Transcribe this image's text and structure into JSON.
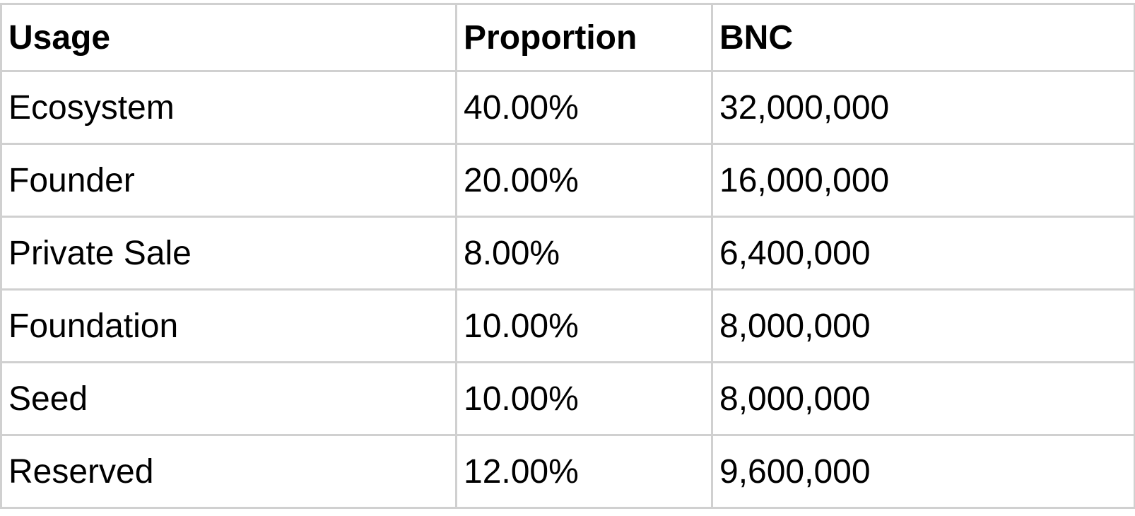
{
  "table": {
    "headers": [
      "Usage",
      "Proportion",
      "BNC"
    ],
    "rows": [
      [
        "Ecosystem",
        "40.00%",
        "32,000,000"
      ],
      [
        "Founder",
        "20.00%",
        "16,000,000"
      ],
      [
        "Private Sale",
        "8.00%",
        "6,400,000"
      ],
      [
        "Foundation",
        "10.00%",
        "8,000,000"
      ],
      [
        "Seed",
        "10.00%",
        "8,000,000"
      ],
      [
        "Reserved",
        "12.00%",
        "9,600,000"
      ]
    ]
  },
  "colors": {
    "border": "#d0d0d0",
    "text": "#000000",
    "background": "#ffffff"
  }
}
